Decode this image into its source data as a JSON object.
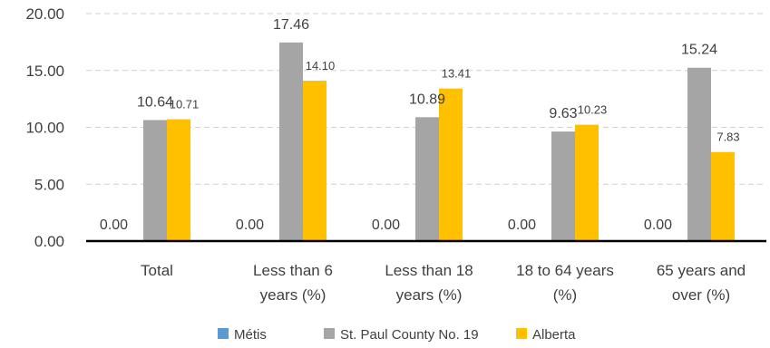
{
  "chart_data": {
    "type": "bar",
    "categories": [
      [
        "Total"
      ],
      [
        "Less than 6",
        "years (%)"
      ],
      [
        "Less than 18",
        "years (%)"
      ],
      [
        "18 to 64 years",
        "(%)"
      ],
      [
        "65 years and",
        "over (%)"
      ]
    ],
    "series": [
      {
        "name": "Métis",
        "color": "#5b9bd5",
        "values": [
          0.0,
          0.0,
          0.0,
          0.0,
          0.0
        ],
        "labels": [
          "0.00",
          "0.00",
          "0.00",
          "0.00",
          "0.00"
        ]
      },
      {
        "name": "St. Paul County No. 19",
        "color": "#a5a5a5",
        "values": [
          10.64,
          17.46,
          10.89,
          9.63,
          15.24
        ],
        "labels": [
          "10.64",
          "17.46",
          "10.89",
          "9.63",
          "15.24"
        ]
      },
      {
        "name": "Alberta",
        "color": "#ffc000",
        "values": [
          10.71,
          14.1,
          13.41,
          10.23,
          7.83
        ],
        "labels": [
          "10.71",
          "14.10",
          "13.41",
          "10.23",
          "7.83"
        ]
      }
    ],
    "yticks": [
      "0.00",
      "5.00",
      "10.00",
      "15.00",
      "20.00"
    ],
    "ylim": [
      0,
      20
    ],
    "grid": true,
    "legend": "bottom"
  }
}
